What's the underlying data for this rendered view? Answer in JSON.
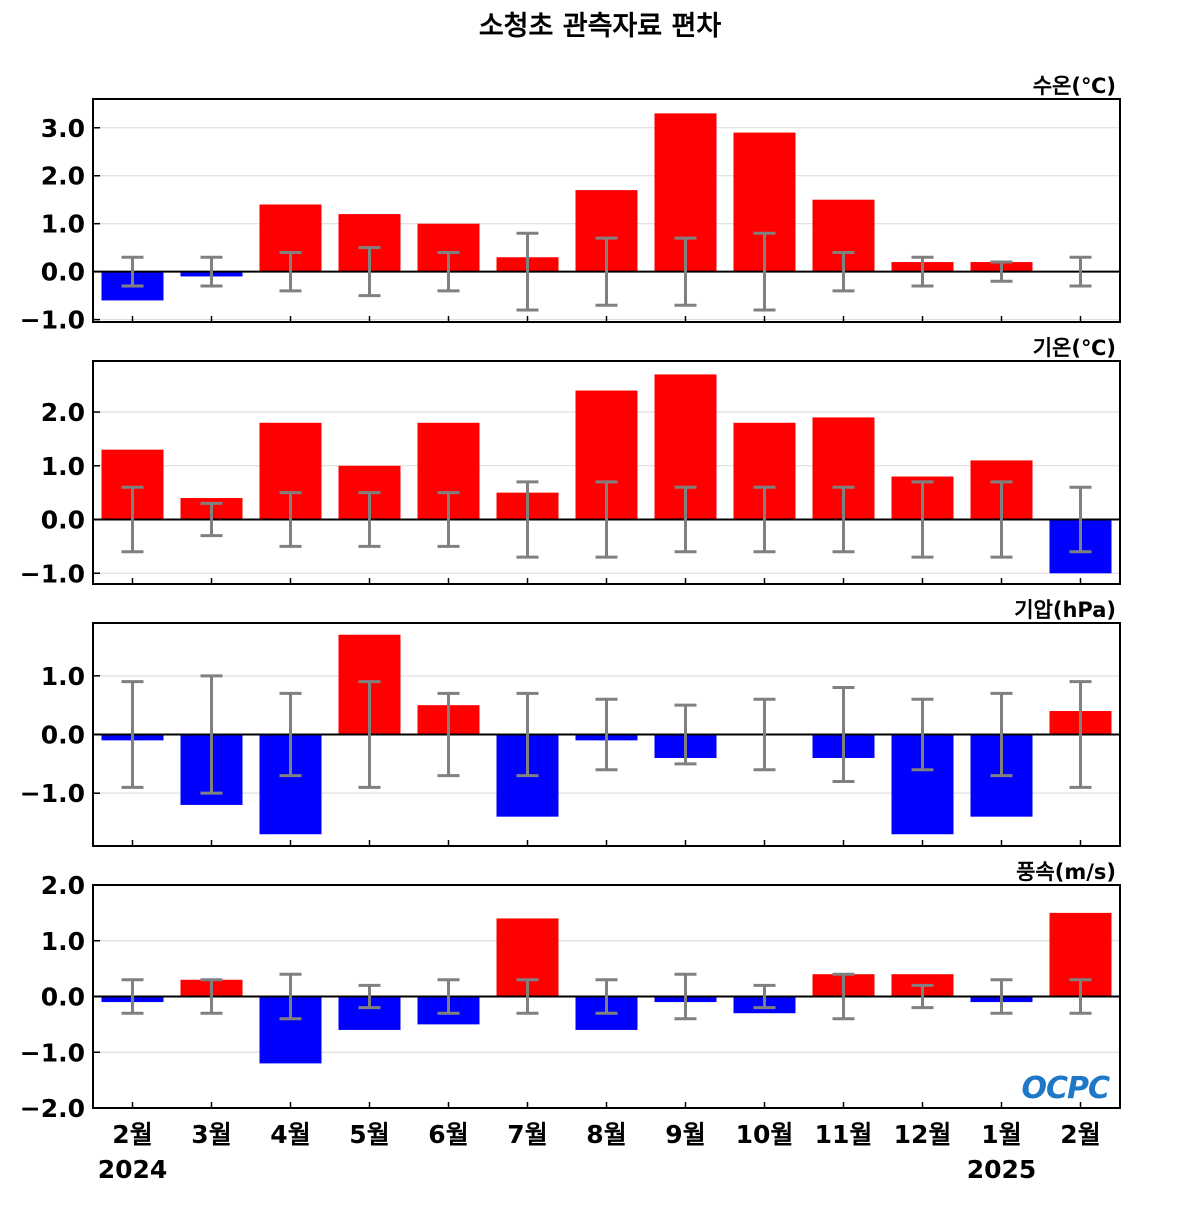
{
  "title": "소청초 관측자료 편차",
  "logo_text": "OCPC",
  "colors": {
    "positive": "#ff0000",
    "negative": "#0000ff",
    "errorbar": "#808080",
    "zero_line": "#000000",
    "grid": "#d9d9d9",
    "logo": "#1e78c8"
  },
  "chart_data": [
    {
      "type": "bar",
      "ylabel": "수온(℃)",
      "categories": [
        "2월",
        "3월",
        "4월",
        "5월",
        "6월",
        "7월",
        "8월",
        "9월",
        "10월",
        "11월",
        "12월",
        "1월",
        "2월"
      ],
      "values": [
        -0.6,
        -0.1,
        1.4,
        1.2,
        1.0,
        0.3,
        1.7,
        3.3,
        2.9,
        1.5,
        0.2,
        0.2,
        0.0
      ],
      "error": [
        0.3,
        0.3,
        0.4,
        0.5,
        0.4,
        0.8,
        0.7,
        0.7,
        0.8,
        0.4,
        0.3,
        0.2,
        0.3
      ],
      "ylim": [
        -1.05,
        3.6
      ],
      "yticks": [
        -1.0,
        0.0,
        1.0,
        2.0,
        3.0
      ],
      "ytick_labels": [
        "−1.0",
        "0.0",
        "1.0",
        "2.0",
        "3.0"
      ],
      "grid": true
    },
    {
      "type": "bar",
      "ylabel": "기온(℃)",
      "categories": [
        "2월",
        "3월",
        "4월",
        "5월",
        "6월",
        "7월",
        "8월",
        "9월",
        "10월",
        "11월",
        "12월",
        "1월",
        "2월"
      ],
      "values": [
        1.3,
        0.4,
        1.8,
        1.0,
        1.8,
        0.5,
        2.4,
        2.7,
        1.8,
        1.9,
        0.8,
        1.1,
        -1.0
      ],
      "error": [
        0.6,
        0.3,
        0.5,
        0.5,
        0.5,
        0.7,
        0.7,
        0.6,
        0.6,
        0.6,
        0.7,
        0.7,
        0.6
      ],
      "ylim": [
        -1.2,
        2.95
      ],
      "yticks": [
        -1.0,
        0.0,
        1.0,
        2.0
      ],
      "ytick_labels": [
        "−1.0",
        "0.0",
        "1.0",
        "2.0"
      ],
      "grid": true
    },
    {
      "type": "bar",
      "ylabel": "기압(hPa)",
      "categories": [
        "2월",
        "3월",
        "4월",
        "5월",
        "6월",
        "7월",
        "8월",
        "9월",
        "10월",
        "11월",
        "12월",
        "1월",
        "2월"
      ],
      "values": [
        -0.1,
        -1.2,
        -1.7,
        1.7,
        0.5,
        -1.4,
        -0.1,
        -0.4,
        0.0,
        -0.4,
        -1.7,
        -1.4,
        0.4
      ],
      "error": [
        0.9,
        1.0,
        0.7,
        0.9,
        0.7,
        0.7,
        0.6,
        0.5,
        0.6,
        0.8,
        0.6,
        0.7,
        0.9
      ],
      "ylim": [
        -1.9,
        1.9
      ],
      "yticks": [
        -1.0,
        0.0,
        1.0
      ],
      "ytick_labels": [
        "−1.0",
        "0.0",
        "1.0"
      ],
      "grid": true
    },
    {
      "type": "bar",
      "ylabel": "풍속(m/s)",
      "categories": [
        "2월",
        "3월",
        "4월",
        "5월",
        "6월",
        "7월",
        "8월",
        "9월",
        "10월",
        "11월",
        "12월",
        "1월",
        "2월"
      ],
      "values": [
        -0.1,
        0.3,
        -1.2,
        -0.6,
        -0.5,
        1.4,
        -0.6,
        -0.1,
        -0.3,
        0.4,
        0.4,
        -0.1,
        1.5
      ],
      "error": [
        0.3,
        0.3,
        0.4,
        0.2,
        0.3,
        0.3,
        0.3,
        0.4,
        0.2,
        0.4,
        0.2,
        0.3,
        0.3
      ],
      "ylim": [
        -2.0,
        2.0
      ],
      "yticks": [
        -2.0,
        -1.0,
        0.0,
        1.0,
        2.0
      ],
      "ytick_labels": [
        "−2.0",
        "−1.0",
        "0.0",
        "1.0",
        "2.0"
      ],
      "grid": true
    }
  ],
  "x_axis": {
    "tick_labels": [
      "2월",
      "3월",
      "4월",
      "5월",
      "6월",
      "7월",
      "8월",
      "9월",
      "10월",
      "11월",
      "12월",
      "1월",
      "2월"
    ],
    "year_labels": [
      {
        "index": 0,
        "text": "2024"
      },
      {
        "index": 11,
        "text": "2025"
      }
    ]
  }
}
